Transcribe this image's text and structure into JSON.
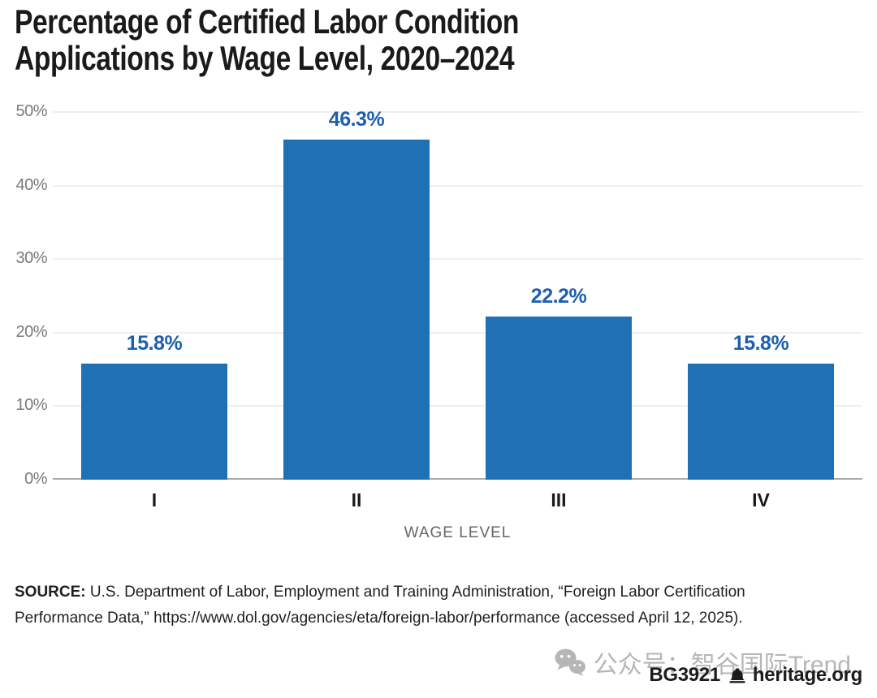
{
  "chart_data": {
    "type": "bar",
    "title": "Percentage of Certified Labor Condition Applications by Wage Level, 2020–2024",
    "categories": [
      "I",
      "II",
      "III",
      "IV"
    ],
    "values": [
      15.8,
      46.3,
      22.2,
      15.8
    ],
    "value_labels": [
      "15.8%",
      "46.3%",
      "22.2%",
      "15.8%"
    ],
    "xlabel": "WAGE LEVEL",
    "ylabel": "",
    "ylim": [
      0,
      50
    ],
    "yticks": [
      0,
      10,
      20,
      30,
      40,
      50
    ],
    "ytick_labels": [
      "0%",
      "10%",
      "20%",
      "30%",
      "40%",
      "50%"
    ],
    "grid": true,
    "legend": "none",
    "bar_color": "#2070b6",
    "value_label_color": "#1d5fae"
  },
  "source": {
    "label": "SOURCE:",
    "line1_rest": " U.S. Department of Labor, Employment and Training Administration, “Foreign Labor Certification",
    "line2": "Performance Data,” https://www.dol.gov/agencies/eta/foreign-labor/performance (accessed April 12, 2025).",
    "full_text": "SOURCE: U.S. Department of Labor, Employment and Training Administration, “Foreign Labor Certification Performance Data,” https://www.dol.gov/agencies/eta/foreign-labor/performance (accessed April 12, 2025)."
  },
  "footer": {
    "report_id": "BG3921",
    "site": "heritage.org",
    "bell_icon": "liberty-bell-icon"
  },
  "watermark": {
    "text": "公众号：智谷国际Trend",
    "icon": "wechat-icon",
    "color": "#b6b6b6"
  }
}
